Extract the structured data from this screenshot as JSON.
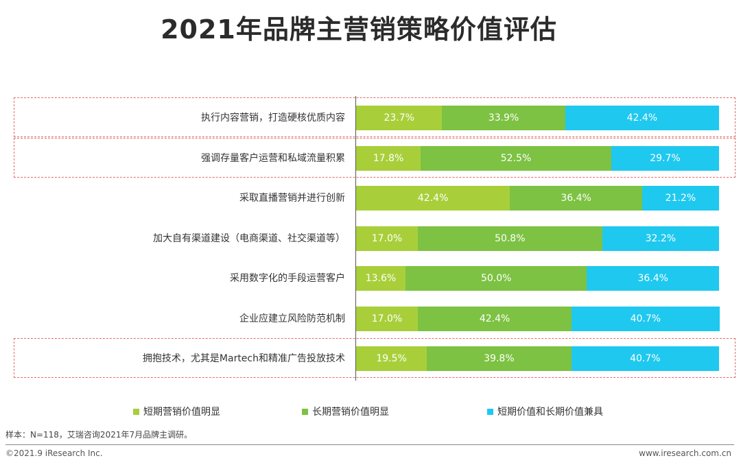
{
  "chart_data": {
    "type": "bar",
    "orientation": "horizontal",
    "stacked": true,
    "title": "2021年品牌主营销策略价值评估",
    "categories": [
      "执行内容营销，打造硬核优质内容",
      "强调存量客户运营和私域流量积累",
      "采取直播营销并进行创新",
      "加大自有渠道建设（电商渠道、社交渠道等）",
      "采用数字化的手段运营客户",
      "企业应建立风险防范机制",
      "拥抱技术，尤其是Martech和精准广告投放技术"
    ],
    "series": [
      {
        "name": "短期营销价值明显",
        "color": "#a8cf3a",
        "values": [
          23.7,
          17.8,
          42.4,
          17.0,
          13.6,
          17.0,
          19.5
        ]
      },
      {
        "name": "长期营销价值明显",
        "color": "#7dc243",
        "values": [
          33.9,
          52.5,
          36.4,
          50.8,
          50.0,
          42.4,
          39.8
        ]
      },
      {
        "name": "短期价值和长期价值兼具",
        "color": "#1fc8ef",
        "values": [
          42.4,
          29.7,
          21.2,
          32.2,
          36.4,
          40.7,
          40.7
        ]
      }
    ],
    "value_suffix": "%",
    "highlighted_rows": [
      0,
      1,
      6
    ],
    "xlim": [
      0,
      100
    ]
  },
  "note": "样本：N=118，艾瑞咨询2021年7月品牌主调研。",
  "footer": {
    "copyright": "©2021.9 iResearch Inc.",
    "website": "www.iresearch.com.cn"
  }
}
